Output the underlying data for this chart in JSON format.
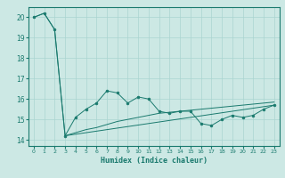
{
  "xlabel": "Humidex (Indice chaleur)",
  "background_color": "#cce8e4",
  "grid_color": "#aad4d0",
  "line_color": "#1a7a6e",
  "xlim": [
    -0.5,
    23.5
  ],
  "ylim": [
    13.7,
    20.5
  ],
  "yticks": [
    14,
    15,
    16,
    17,
    18,
    19,
    20
  ],
  "xticks": [
    0,
    1,
    2,
    3,
    4,
    5,
    6,
    7,
    8,
    9,
    10,
    11,
    12,
    13,
    14,
    15,
    16,
    17,
    18,
    19,
    20,
    21,
    22,
    23
  ],
  "line1_x": [
    0,
    1,
    2,
    3,
    4,
    5,
    6,
    7,
    8,
    9,
    10,
    11,
    12,
    13,
    14,
    15,
    16,
    17,
    18,
    19,
    20,
    21,
    22,
    23
  ],
  "line1_y": [
    20.0,
    20.2,
    19.4,
    14.2,
    15.1,
    15.5,
    15.8,
    16.4,
    16.3,
    15.8,
    16.1,
    16.0,
    15.4,
    15.3,
    15.4,
    15.4,
    14.8,
    14.7,
    15.0,
    15.2,
    15.1,
    15.2,
    15.5,
    15.7
  ],
  "line2_x": [
    0,
    1,
    2,
    3,
    23
  ],
  "line2_y": [
    20.0,
    20.2,
    19.4,
    14.2,
    15.7
  ],
  "line3_x": [
    3,
    4,
    5,
    6,
    7,
    8,
    9,
    10,
    11,
    12,
    13,
    14,
    15,
    16,
    17,
    18,
    19,
    20,
    21,
    22,
    23
  ],
  "line3_y": [
    14.2,
    14.35,
    14.5,
    14.6,
    14.75,
    14.9,
    15.0,
    15.1,
    15.2,
    15.3,
    15.35,
    15.4,
    15.45,
    15.5,
    15.55,
    15.6,
    15.65,
    15.7,
    15.75,
    15.8,
    15.85
  ]
}
